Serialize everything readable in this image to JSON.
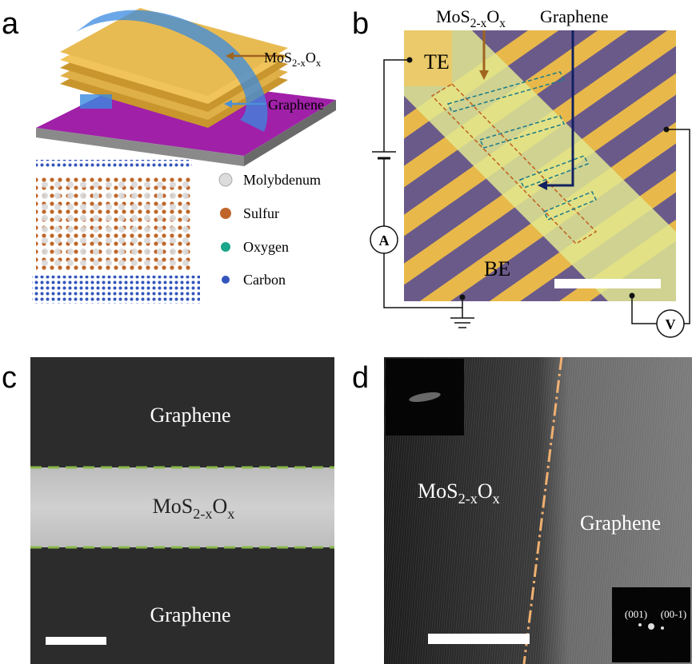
{
  "panel_a": {
    "letter": "a",
    "formula": [
      "MoS",
      "2-x",
      "O",
      "x"
    ],
    "graphene": "Graphene",
    "legend": [
      "Molybdenum",
      "Sulfur",
      "Oxygen",
      "Carbon"
    ]
  },
  "panel_b": {
    "letter": "b",
    "formula": [
      "MoS",
      "2-x",
      "O",
      "x"
    ],
    "graphene": "Graphene",
    "top_electrode": "TE",
    "bottom_electrode": "BE",
    "ammeter": "A",
    "voltmeter": "V"
  },
  "panel_c": {
    "letter": "c",
    "top_label": "Graphene",
    "formula": [
      "MoS",
      "2-x",
      "O",
      "x"
    ],
    "bottom_label": "Graphene"
  },
  "panel_d": {
    "letter": "d",
    "formula": [
      "MoS",
      "2-x",
      "O",
      "x"
    ],
    "graphene": "Graphene",
    "spot_left": "(001)",
    "spot_right": "(00-1)"
  }
}
